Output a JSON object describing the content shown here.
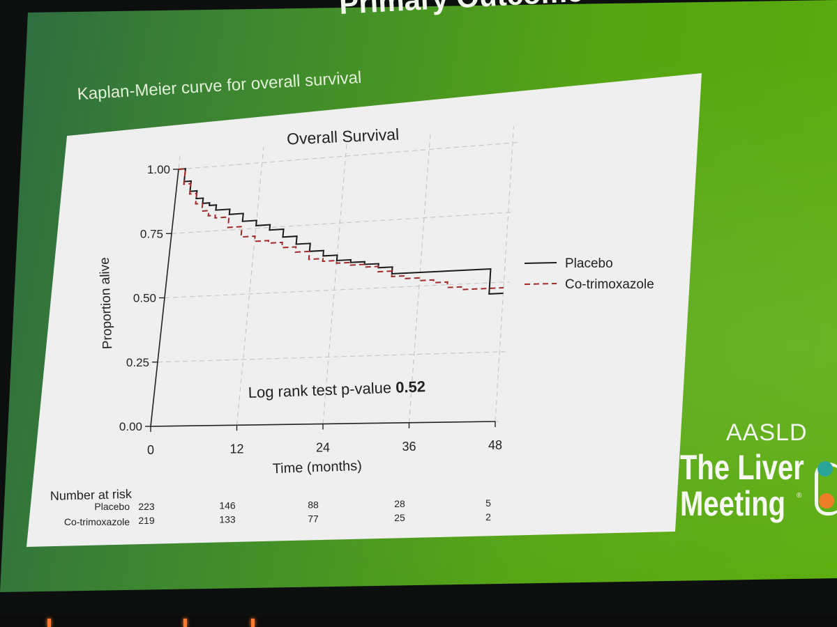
{
  "slide": {
    "title": "Primary Outcome",
    "subtitle": "Kaplan-Meier curve for overall survival",
    "branding": {
      "org": "AASLD",
      "event_line1": "The Liver",
      "event_line2": "Meeting",
      "registered": "®"
    }
  },
  "chart_data": {
    "type": "line",
    "title": "Overall Survival",
    "xlabel": "Time (months)",
    "ylabel": "Proportion alive",
    "xlim": [
      0,
      48
    ],
    "ylim": [
      0,
      1
    ],
    "xticks": [
      0,
      12,
      24,
      36,
      48
    ],
    "xtick_labels": [
      "0",
      "12",
      "24",
      "36",
      "48"
    ],
    "yticks": [
      0,
      0.25,
      0.5,
      0.75,
      1
    ],
    "ytick_labels": [
      "0.00",
      "0.25",
      "0.50",
      "0.75",
      "1.00"
    ],
    "grid": true,
    "legend_position": "right",
    "annotation": {
      "prefix": "Log rank test p-value ",
      "value": "0.52"
    },
    "series": [
      {
        "name": "Placebo",
        "style": "solid",
        "color": "#1a1a1a",
        "x": [
          0,
          1,
          2,
          3,
          4,
          5,
          6,
          8,
          10,
          12,
          14,
          16,
          18,
          20,
          22,
          24,
          26,
          28,
          30,
          32,
          34,
          36,
          40,
          44,
          46,
          46,
          48
        ],
        "y": [
          1.0,
          0.95,
          0.91,
          0.88,
          0.86,
          0.85,
          0.83,
          0.81,
          0.78,
          0.76,
          0.74,
          0.71,
          0.68,
          0.65,
          0.63,
          0.61,
          0.6,
          0.59,
          0.575,
          0.55,
          0.55,
          0.55,
          0.55,
          0.55,
          0.55,
          0.46,
          0.46
        ]
      },
      {
        "name": "Co-trimoxazole",
        "style": "dashed",
        "color": "#a02a2a",
        "x": [
          0,
          1,
          2,
          3,
          4,
          5,
          6,
          8,
          10,
          12,
          14,
          16,
          18,
          20,
          22,
          24,
          26,
          28,
          30,
          32,
          34,
          36,
          38,
          40,
          42,
          44,
          46,
          48
        ],
        "y": [
          1.0,
          0.94,
          0.9,
          0.86,
          0.83,
          0.81,
          0.8,
          0.76,
          0.72,
          0.7,
          0.69,
          0.67,
          0.65,
          0.62,
          0.61,
          0.6,
          0.59,
          0.58,
          0.56,
          0.54,
          0.53,
          0.52,
          0.51,
          0.49,
          0.48,
          0.48,
          0.48,
          0.48
        ]
      }
    ],
    "risk_table": {
      "title": "Number at risk",
      "rows": [
        {
          "label": "Placebo",
          "values": [
            "223",
            "146",
            "88",
            "28",
            "5"
          ]
        },
        {
          "label": "Co-trimoxazole",
          "values": [
            "219",
            "133",
            "77",
            "25",
            "2"
          ]
        }
      ]
    }
  }
}
